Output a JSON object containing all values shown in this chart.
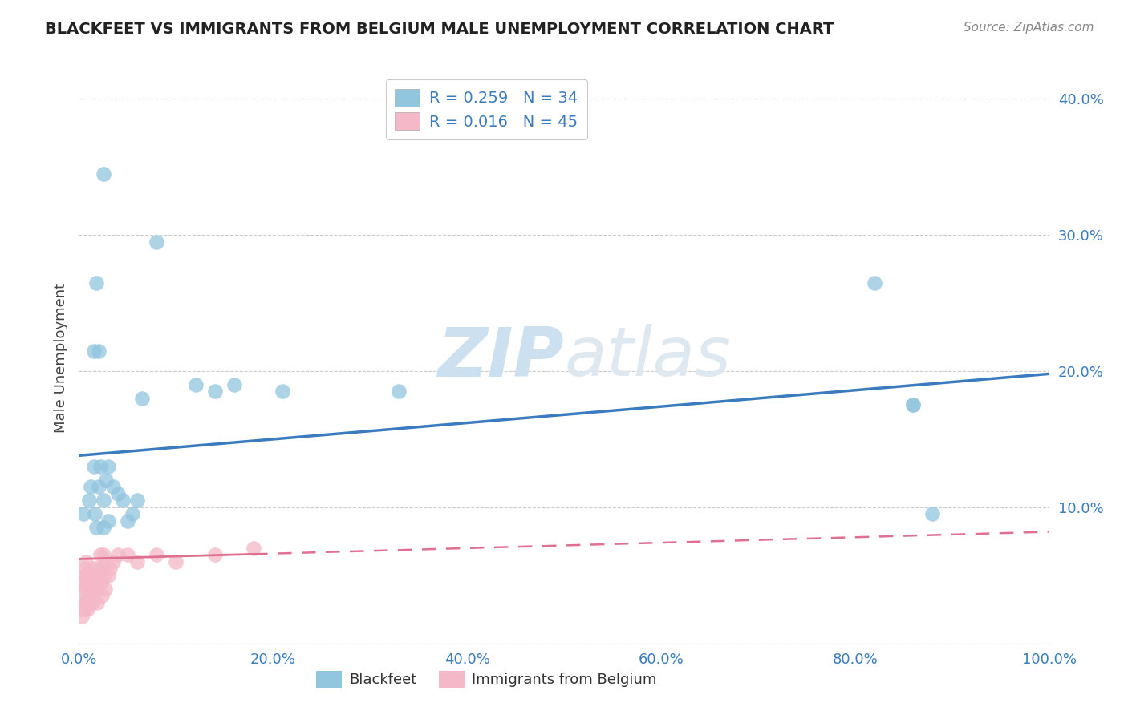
{
  "title": "BLACKFEET VS IMMIGRANTS FROM BELGIUM MALE UNEMPLOYMENT CORRELATION CHART",
  "source": "Source: ZipAtlas.com",
  "ylabel": "Male Unemployment",
  "xlim": [
    0.0,
    1.0
  ],
  "ylim": [
    0.0,
    0.42
  ],
  "xticks": [
    0.0,
    0.2,
    0.4,
    0.6,
    0.8,
    1.0
  ],
  "xticklabels": [
    "0.0%",
    "20.0%",
    "40.0%",
    "60.0%",
    "80.0%",
    "100.0%"
  ],
  "yticks": [
    0.0,
    0.1,
    0.2,
    0.3,
    0.4
  ],
  "yticklabels": [
    "",
    "10.0%",
    "20.0%",
    "30.0%",
    "40.0%"
  ],
  "blue_color": "#92c5de",
  "pink_color": "#f4b8c8",
  "blue_line_color": "#3a7cbf",
  "pink_line_color": "#e07090",
  "tick_color": "#3a7cbf",
  "watermark_color": "#cde0f0",
  "blackfeet_x": [
    0.005,
    0.01,
    0.012,
    0.015,
    0.016,
    0.018,
    0.02,
    0.022,
    0.025,
    0.025,
    0.028,
    0.03,
    0.03,
    0.035,
    0.04,
    0.045,
    0.05,
    0.055,
    0.06,
    0.065,
    0.015,
    0.018,
    0.02,
    0.12,
    0.14,
    0.16,
    0.21,
    0.33,
    0.82,
    0.86,
    0.88,
    0.86,
    0.025,
    0.08
  ],
  "blackfeet_y": [
    0.095,
    0.105,
    0.115,
    0.13,
    0.095,
    0.085,
    0.115,
    0.13,
    0.105,
    0.085,
    0.12,
    0.13,
    0.09,
    0.115,
    0.11,
    0.105,
    0.09,
    0.095,
    0.105,
    0.18,
    0.215,
    0.265,
    0.215,
    0.19,
    0.185,
    0.19,
    0.185,
    0.185,
    0.265,
    0.175,
    0.095,
    0.175,
    0.345,
    0.295
  ],
  "belgium_x": [
    0.001,
    0.002,
    0.003,
    0.003,
    0.004,
    0.004,
    0.005,
    0.005,
    0.006,
    0.006,
    0.007,
    0.007,
    0.008,
    0.008,
    0.009,
    0.009,
    0.01,
    0.011,
    0.012,
    0.013,
    0.014,
    0.015,
    0.016,
    0.017,
    0.018,
    0.019,
    0.02,
    0.021,
    0.022,
    0.023,
    0.024,
    0.025,
    0.026,
    0.027,
    0.028,
    0.03,
    0.032,
    0.035,
    0.04,
    0.05,
    0.06,
    0.08,
    0.1,
    0.14,
    0.18
  ],
  "belgium_y": [
    0.025,
    0.03,
    0.02,
    0.04,
    0.025,
    0.045,
    0.03,
    0.05,
    0.025,
    0.055,
    0.04,
    0.06,
    0.03,
    0.05,
    0.025,
    0.045,
    0.03,
    0.04,
    0.05,
    0.035,
    0.03,
    0.04,
    0.055,
    0.045,
    0.04,
    0.03,
    0.05,
    0.055,
    0.065,
    0.045,
    0.035,
    0.065,
    0.05,
    0.04,
    0.06,
    0.05,
    0.055,
    0.06,
    0.065,
    0.065,
    0.06,
    0.065,
    0.06,
    0.065,
    0.07
  ],
  "blue_trendline_x": [
    0.0,
    1.0
  ],
  "blue_trendline_y": [
    0.138,
    0.198
  ],
  "pink_trendline_x": [
    0.0,
    1.0
  ],
  "pink_trendline_y": [
    0.062,
    0.082
  ]
}
